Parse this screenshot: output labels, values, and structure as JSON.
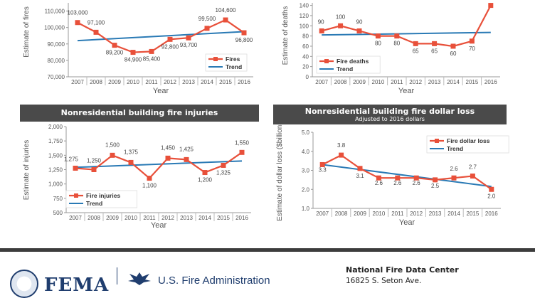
{
  "colors": {
    "data_line": "#e8503a",
    "trend_line": "#2a7ab5",
    "header_bg": "#4a4a4a",
    "axis_text": "#555555"
  },
  "chart_data": [
    {
      "type": "line",
      "id": "fires",
      "header": "",
      "subtitle": "",
      "xlabel": "Year",
      "ylabel": "Estimate of fires",
      "x": [
        "2007",
        "2008",
        "2009",
        "2010",
        "2011",
        "2012",
        "2013",
        "2014",
        "2015",
        "2016"
      ],
      "ylim": [
        70000,
        115000
      ],
      "yticks": [
        70000,
        80000,
        90000,
        100000,
        110000
      ],
      "ytick_labels": [
        "70,000",
        "80,000",
        "90,000",
        "100,000",
        "110,000"
      ],
      "series": [
        {
          "name": "Fires",
          "values": [
            103000,
            97100,
            89200,
            84900,
            85400,
            92800,
            93700,
            99500,
            104600,
            96800
          ],
          "labels": [
            "103,000",
            "97,100",
            "89,200",
            "84,900",
            "85,400",
            "92,800",
            "93,700",
            "99,500",
            "104,600",
            "96,800"
          ]
        }
      ],
      "trend": {
        "name": "Trend",
        "start": 92000,
        "end": 97500
      },
      "legend": "bottom-right"
    },
    {
      "type": "line",
      "id": "deaths",
      "header": "",
      "subtitle": "",
      "xlabel": "Year",
      "ylabel": "Estimate of deaths",
      "x": [
        "2007",
        "2008",
        "2009",
        "2010",
        "2011",
        "2012",
        "2013",
        "2014",
        "2015",
        "2016"
      ],
      "ylim": [
        0,
        145
      ],
      "yticks": [
        0,
        20,
        40,
        60,
        80,
        100,
        120,
        140
      ],
      "ytick_labels": [
        "0",
        "20",
        "40",
        "60",
        "80",
        "100",
        "120",
        "140"
      ],
      "series": [
        {
          "name": "Fire deaths",
          "values": [
            90,
            100,
            90,
            80,
            80,
            65,
            65,
            60,
            70,
            140
          ],
          "labels": [
            "90",
            "100",
            "90",
            "80",
            "80",
            "65",
            "65",
            "60",
            "70",
            ""
          ]
        }
      ],
      "trend": {
        "name": "Trend",
        "start": 82,
        "end": 87
      },
      "legend": "bottom-left"
    },
    {
      "type": "line",
      "id": "injuries",
      "header": "Nonresidential building fire injuries",
      "subtitle": "",
      "xlabel": "Year",
      "ylabel": "Estimate of injuries",
      "x": [
        "2007",
        "2008",
        "2009",
        "2010",
        "2011",
        "2012",
        "2013",
        "2014",
        "2015",
        "2016"
      ],
      "ylim": [
        500,
        2000
      ],
      "yticks": [
        500,
        750,
        1000,
        1250,
        1500,
        1750,
        2000
      ],
      "ytick_labels": [
        "500",
        "750",
        "1,000",
        "1,250",
        "1,500",
        "1,750",
        "2,000"
      ],
      "series": [
        {
          "name": "Fire injuries",
          "values": [
            1275,
            1250,
            1500,
            1375,
            1100,
            1450,
            1425,
            1200,
            1325,
            1550
          ],
          "labels": [
            "1,275",
            "1,250",
            "1,500",
            "1,375",
            "1,100",
            "1,450",
            "1,425",
            "1,200",
            "1,325",
            "1,550"
          ]
        }
      ],
      "trend": {
        "name": "Trend",
        "start": 1290,
        "end": 1400
      },
      "legend": "bottom-left"
    },
    {
      "type": "line",
      "id": "dollarloss",
      "header": "Nonresidential building fire dollar loss",
      "subtitle": "Adjusted to 2016 dollars",
      "xlabel": "Year",
      "ylabel": "Estimate of dollar loss ($billions)",
      "x": [
        "2007",
        "2008",
        "2009",
        "2010",
        "2011",
        "2012",
        "2013",
        "2014",
        "2015",
        "2016"
      ],
      "ylim": [
        1.0,
        5.0
      ],
      "yticks": [
        1.0,
        2.0,
        3.0,
        4.0,
        5.0
      ],
      "ytick_labels": [
        "1.0",
        "2.0",
        "3.0",
        "4.0",
        "5.0"
      ],
      "series": [
        {
          "name": "Fire dollar loss",
          "values": [
            3.3,
            3.8,
            3.1,
            2.6,
            2.6,
            2.6,
            2.5,
            2.6,
            2.7,
            2.0
          ],
          "labels": [
            "3.3",
            "3.8",
            "3.1",
            "2.6",
            "2.6",
            "2.6",
            "2.5",
            "2.6",
            "2.7",
            "2.0"
          ]
        }
      ],
      "trend": {
        "name": "Trend",
        "start": 3.3,
        "end": 2.15
      },
      "legend": "top-right"
    }
  ],
  "footer": {
    "agency_logo_text": "FEMA",
    "usfa_text": "U.S. Fire Administration",
    "nfdc_title": "National Fire Data Center",
    "nfdc_address": "16825 S. Seton Ave."
  }
}
